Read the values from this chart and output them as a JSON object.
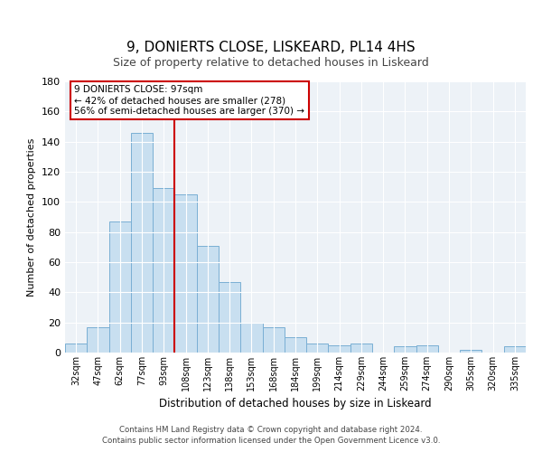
{
  "title": "9, DONIERTS CLOSE, LISKEARD, PL14 4HS",
  "subtitle": "Size of property relative to detached houses in Liskeard",
  "xlabel": "Distribution of detached houses by size in Liskeard",
  "ylabel": "Number of detached properties",
  "bar_labels": [
    "32sqm",
    "47sqm",
    "62sqm",
    "77sqm",
    "93sqm",
    "108sqm",
    "123sqm",
    "138sqm",
    "153sqm",
    "168sqm",
    "184sqm",
    "199sqm",
    "214sqm",
    "229sqm",
    "244sqm",
    "259sqm",
    "274sqm",
    "290sqm",
    "305sqm",
    "320sqm",
    "335sqm"
  ],
  "bar_values": [
    6,
    17,
    87,
    146,
    109,
    105,
    71,
    47,
    20,
    17,
    10,
    6,
    5,
    6,
    0,
    4,
    5,
    0,
    2,
    0,
    4
  ],
  "bar_color": "#c8dff0",
  "bar_edge_color": "#7aafd4",
  "vline_x_bar_index": 4,
  "vline_color": "#cc0000",
  "ylim": [
    0,
    180
  ],
  "yticks": [
    0,
    20,
    40,
    60,
    80,
    100,
    120,
    140,
    160,
    180
  ],
  "annotation_title": "9 DONIERTS CLOSE: 97sqm",
  "annotation_line1": "← 42% of detached houses are smaller (278)",
  "annotation_line2": "56% of semi-detached houses are larger (370) →",
  "annotation_box_color": "#ffffff",
  "annotation_box_edge": "#cc0000",
  "footer_line1": "Contains HM Land Registry data © Crown copyright and database right 2024.",
  "footer_line2": "Contains public sector information licensed under the Open Government Licence v3.0.",
  "background_color": "#edf2f7",
  "title_fontsize": 11,
  "subtitle_fontsize": 9
}
